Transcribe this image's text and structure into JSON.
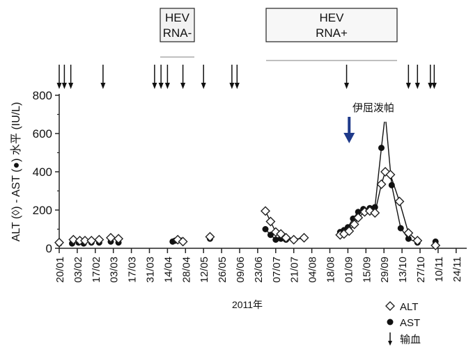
{
  "chart_data": {
    "type": "line",
    "xlabel": "2011年",
    "ylabel": "ALT (◊) - AST (●) 水平 (IU/L)",
    "ylim": [
      0,
      800
    ],
    "yticks": [
      0,
      200,
      400,
      600,
      800
    ],
    "x_unit": "days since 20/01/2011",
    "xlim": [
      0,
      308
    ],
    "xtick_labels": [
      "20/01",
      "03/02",
      "17/02",
      "03/03",
      "17/03",
      "31/03",
      "14/04",
      "28/04",
      "12/05",
      "26/05",
      "09/06",
      "23/06",
      "07/07",
      "21/07",
      "04/08",
      "18/08",
      "01/09",
      "15/09",
      "29/09",
      "13/10",
      "27/10",
      "10/11",
      "24/11"
    ],
    "series": [
      {
        "name": "ALT",
        "marker": "diamond",
        "segments": [
          {
            "x": [
              0,
              11,
              16,
              20,
              25,
              31,
              40,
              46
            ],
            "y": [
              30,
              45,
              40,
              40,
              40,
              45,
              55,
              50
            ],
            "connected": false
          },
          {
            "x": [
              92,
              96
            ],
            "y": [
              45,
              35
            ],
            "connected": false
          },
          {
            "x": [
              117
            ],
            "y": [
              60
            ],
            "connected": false
          },
          {
            "x": [
              160,
              164,
              168,
              172,
              176,
              182,
              190
            ],
            "y": [
              195,
              140,
              85,
              75,
              55,
              45,
              55
            ],
            "connected": true
          },
          {
            "x": [
              218,
              221,
              225,
              229,
              232,
              237,
              241,
              245,
              250,
              253,
              257,
              264,
              271,
              278
            ],
            "y": [
              70,
              75,
              90,
              125,
              160,
              190,
              195,
              185,
              335,
              400,
              385,
              245,
              80,
              40
            ],
            "connected": true
          },
          {
            "x": [
              292
            ],
            "y": [
              15
            ],
            "connected": false
          }
        ]
      },
      {
        "name": "AST",
        "marker": "circle",
        "segments": [
          {
            "x": [
              0,
              10,
              15,
              19,
              25,
              31,
              40,
              46
            ],
            "y": [
              25,
              25,
              30,
              25,
              30,
              30,
              35,
              30
            ],
            "connected": false
          },
          {
            "x": [
              88,
              90,
              92,
              95
            ],
            "y": [
              35,
              40,
              45,
              40
            ],
            "connected": false
          },
          {
            "x": [
              117
            ],
            "y": [
              50
            ],
            "connected": false
          },
          {
            "x": [
              160,
              164,
              168,
              172,
              176,
              182,
              190
            ],
            "y": [
              100,
              70,
              45,
              50,
              45,
              45,
              55
            ],
            "connected": true
          },
          {
            "x": [
              218,
              221,
              224,
              228,
              232,
              236,
              241,
              245,
              250,
              253,
              258,
              265,
              271,
              278
            ],
            "y": [
              85,
              95,
              110,
              155,
              190,
              205,
              210,
              215,
              525,
              700,
              330,
              105,
              50,
              30
            ],
            "connected": true
          },
          {
            "x": [
              292
            ],
            "y": [
              35
            ],
            "connected": false
          }
        ]
      }
    ],
    "transfusions_x": [
      0,
      4,
      9,
      34,
      74,
      79,
      84,
      96,
      112,
      134,
      138,
      223,
      271,
      278,
      288,
      291
    ],
    "annotations": {
      "hev_negative": {
        "line1": "HEV",
        "line2": "RNA-",
        "x_range": [
          78,
          105
        ]
      },
      "hev_positive": {
        "line1": "HEV",
        "line2": "RNA+",
        "x_range": [
          160,
          262
        ]
      },
      "drug": {
        "label": "伊屈泼帕",
        "x": 225,
        "color": "#1f3a8a"
      }
    },
    "legend": {
      "placement": "bottom-right",
      "items": [
        {
          "marker": "diamond",
          "label": "ALT"
        },
        {
          "marker": "circle",
          "label": "AST"
        },
        {
          "marker": "arrow",
          "label": "输血"
        }
      ]
    }
  }
}
